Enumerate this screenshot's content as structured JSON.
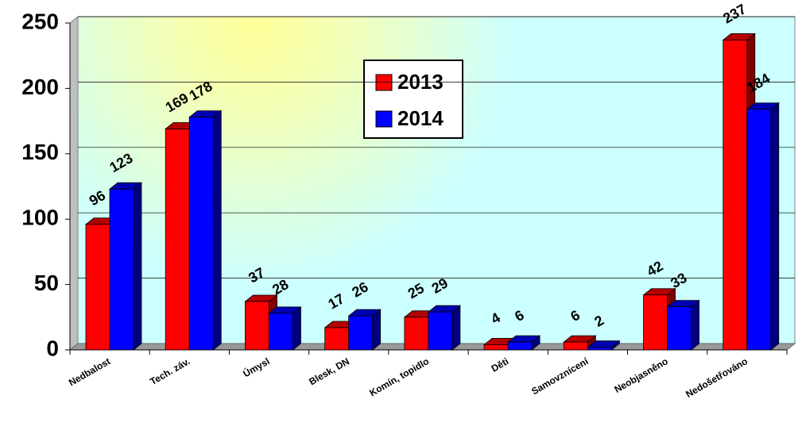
{
  "chart_data": {
    "type": "bar3d",
    "categories": [
      "Nedbalost",
      "Tech. záv.",
      "Úmysl",
      "Blesk, DN",
      "Komín, topidlo",
      "Děti",
      "Samovznícení",
      "Neobjasněno",
      "Nedošetřováno"
    ],
    "series": [
      {
        "name": "2013",
        "color": "#ff0000",
        "values": [
          96,
          169,
          37,
          17,
          25,
          4,
          6,
          42,
          237
        ]
      },
      {
        "name": "2014",
        "color": "#0000ff",
        "values": [
          123,
          178,
          28,
          26,
          29,
          6,
          2,
          33,
          184
        ]
      }
    ],
    "ylim": [
      0,
      250
    ],
    "yticks": [
      0,
      50,
      100,
      150,
      200,
      250
    ],
    "grid": true
  }
}
